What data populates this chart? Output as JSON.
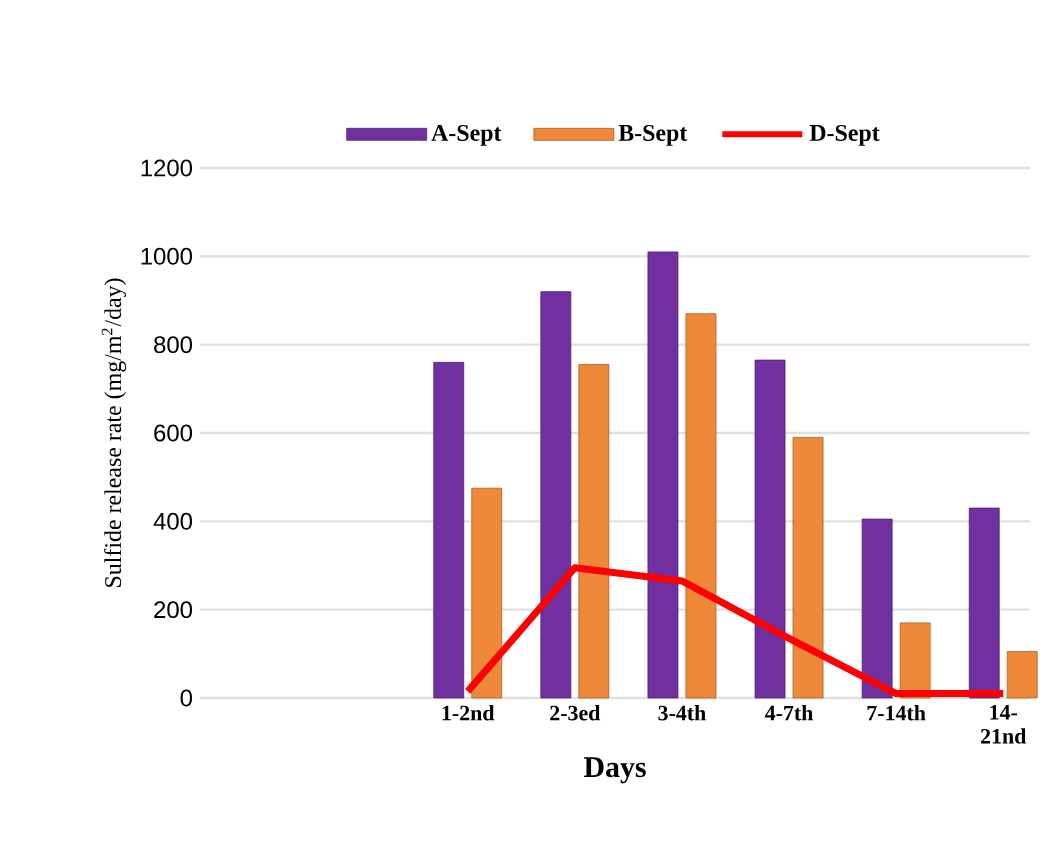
{
  "chart_data": {
    "type": "bar",
    "xlabel": "Days",
    "ylabel": "Sulfide release rate (mg/m$^{2}$/day)",
    "categories": [
      null,
      null,
      "1-2nd",
      "2-3ed",
      "3-4th",
      "4-7th",
      "7-14th",
      "14-21nd"
    ],
    "series": [
      {
        "name": "A-Sept",
        "color": "#7030a0",
        "values": [
          null,
          null,
          760,
          920,
          1010,
          765,
          405,
          430
        ]
      },
      {
        "name": "B-Sept",
        "color": "#f0883a",
        "values": [
          null,
          null,
          475,
          755,
          870,
          590,
          170,
          105
        ]
      },
      {
        "name": "D-Sept",
        "color": "#ff0000",
        "type": "line",
        "line_style": "solid",
        "marker": "none",
        "values": [
          null,
          null,
          15,
          295,
          265,
          135,
          10,
          10
        ]
      }
    ],
    "ylim": [
      0,
      1200
    ],
    "yticks": [
      0,
      200,
      400,
      600,
      800,
      1000,
      1200
    ],
    "grid": "y",
    "legend": "top"
  }
}
